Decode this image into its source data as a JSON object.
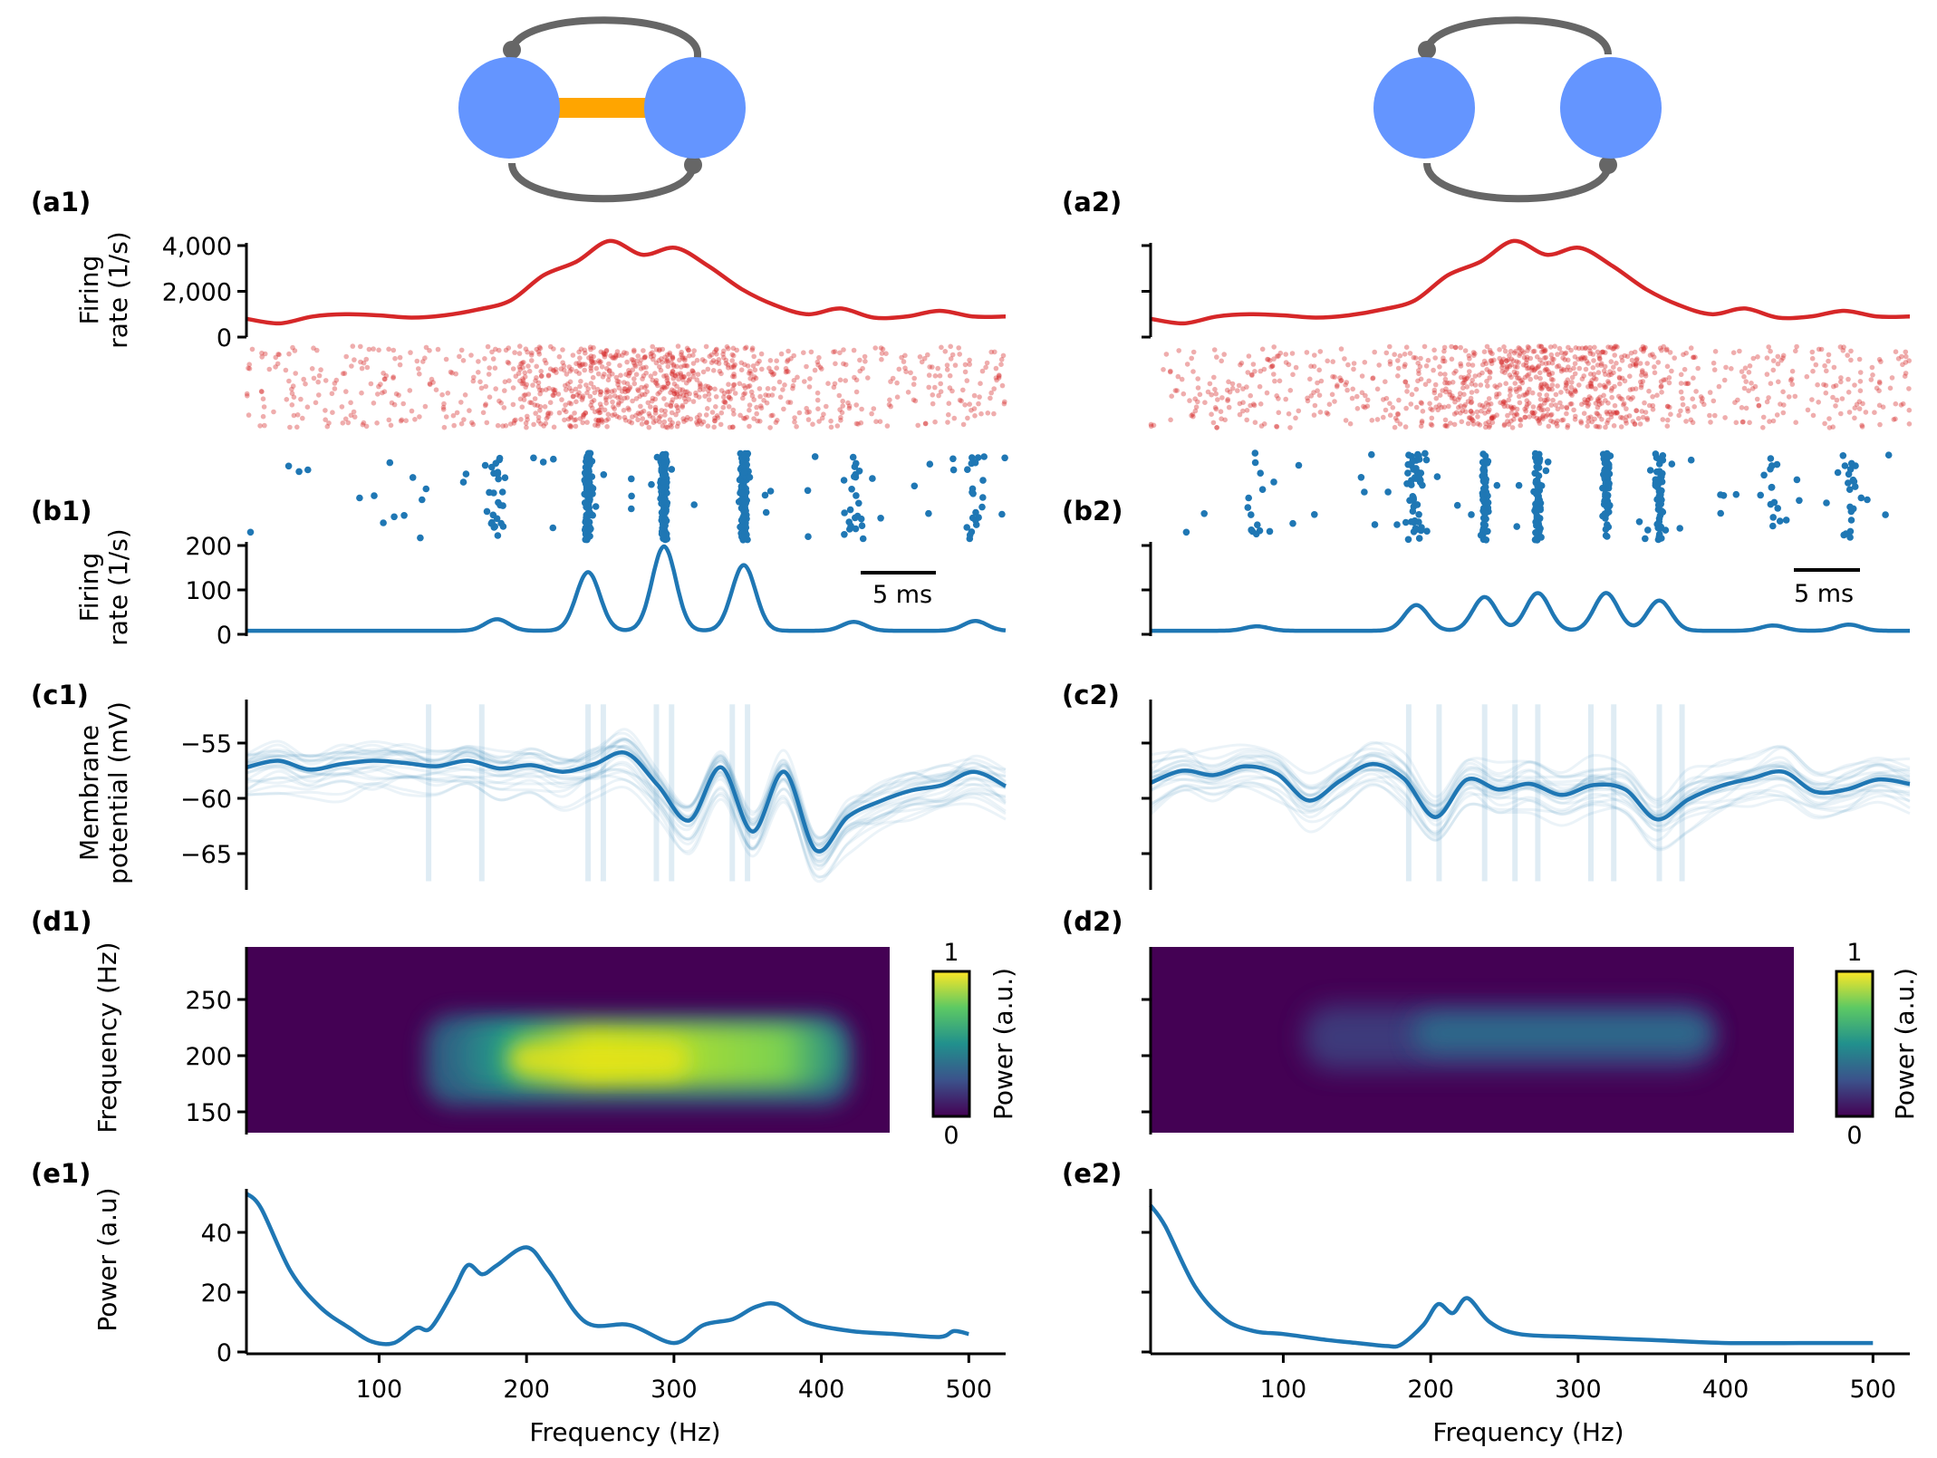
{
  "colors": {
    "excitatory": "#d62728",
    "inhibitory": "#1f77b4",
    "node": "#6495ff",
    "gap_junction": "#ffa500",
    "synapse": "#666666",
    "axis": "#000000"
  },
  "panel_labels": {
    "a1": "(a1)",
    "a2": "(a2)",
    "b1": "(b1)",
    "b2": "(b2)",
    "c1": "(c1)",
    "c2": "(c2)",
    "d1": "(d1)",
    "d2": "(d2)",
    "e1": "(e1)",
    "e2": "(e2)"
  },
  "axis_labels": {
    "a_line1": "Firing",
    "a_line2": "rate (1/s)",
    "b_line1": "Firing",
    "b_line2": "rate (1/s)",
    "c_line1": "Membrane",
    "c_line2": "potential (mV)",
    "d": "Frequency (Hz)",
    "e": "Power (a.u)",
    "x": "Frequency (Hz)",
    "colorbar": "Power (a.u.)"
  },
  "scale_bar": "5 ms",
  "colorbar_ticks": [
    "1",
    "0"
  ],
  "chart_data": [
    {
      "id": "a1",
      "type": "line",
      "series": [
        {
          "name": "",
          "values": [
            800,
            600,
            900,
            1000,
            950,
            850,
            950,
            1200,
            1600,
            2700,
            3300,
            4200,
            3600,
            3900,
            3100,
            2100,
            1400,
            1000,
            1250,
            850,
            900,
            1150,
            900,
            900
          ]
        }
      ],
      "ylim": [
        0,
        4500
      ],
      "yticks": [
        "0",
        "2,000",
        "4,000"
      ]
    },
    {
      "id": "a2",
      "type": "line",
      "series": [
        {
          "name": "",
          "values": [
            800,
            600,
            900,
            1000,
            950,
            850,
            950,
            1200,
            1600,
            2700,
            3300,
            4200,
            3600,
            3900,
            3100,
            2100,
            1400,
            1000,
            1250,
            850,
            900,
            1150,
            900,
            900
          ]
        }
      ],
      "ylim": [
        0,
        4500
      ],
      "yticks": []
    },
    {
      "id": "b1",
      "type": "line",
      "bumps": [
        {
          "t": 0.33,
          "a": 26
        },
        {
          "t": 0.45,
          "a": 132
        },
        {
          "t": 0.55,
          "a": 190
        },
        {
          "t": 0.655,
          "a": 148
        },
        {
          "t": 0.8,
          "a": 20
        },
        {
          "t": 0.96,
          "a": 22
        }
      ],
      "baseline": 8,
      "ylim": [
        0,
        210
      ],
      "yticks": [
        "0",
        "100",
        "200"
      ]
    },
    {
      "id": "b2",
      "type": "line",
      "bumps": [
        {
          "t": 0.14,
          "a": 10
        },
        {
          "t": 0.35,
          "a": 58
        },
        {
          "t": 0.44,
          "a": 76
        },
        {
          "t": 0.51,
          "a": 85
        },
        {
          "t": 0.6,
          "a": 85
        },
        {
          "t": 0.67,
          "a": 68
        },
        {
          "t": 0.82,
          "a": 12
        },
        {
          "t": 0.92,
          "a": 14
        }
      ],
      "baseline": 8,
      "ylim": [
        0,
        210
      ],
      "yticks": []
    },
    {
      "id": "c1",
      "type": "line",
      "series": [
        {
          "name": "",
          "values": [
            -57.2,
            -56.6,
            -57.4,
            -56.9,
            -56.6,
            -56.8,
            -57.1,
            -56.6,
            -57.3,
            -57.0,
            -57.6,
            -56.9,
            -55.9,
            -58.8,
            -62.0,
            -57.2,
            -63.0,
            -57.6,
            -64.7,
            -61.7,
            -60.3,
            -59.3,
            -58.8,
            -57.6,
            -58.9
          ]
        }
      ],
      "ylim": [
        -70,
        -50
      ],
      "yticks": [
        "−55",
        "−60",
        "−65"
      ]
    },
    {
      "id": "c2",
      "type": "line",
      "series": [
        {
          "name": "",
          "values": [
            -58.6,
            -57.5,
            -57.9,
            -57.1,
            -57.8,
            -60.2,
            -58.4,
            -56.9,
            -58.2,
            -61.7,
            -58.3,
            -59.2,
            -58.7,
            -59.7,
            -58.8,
            -59.2,
            -61.9,
            -60.1,
            -58.9,
            -58.2,
            -57.6,
            -59.4,
            -59.2,
            -58.3,
            -58.7
          ]
        }
      ],
      "ylim": [
        -70,
        -50
      ],
      "yticks": []
    },
    {
      "id": "d1",
      "type": "heatmap",
      "ylim": [
        120,
        295
      ],
      "yticks": [
        "250",
        "200",
        "150"
      ],
      "band_freq": 185,
      "peak_power": 1.0
    },
    {
      "id": "d2",
      "type": "heatmap",
      "ylim": [
        120,
        295
      ],
      "yticks": [],
      "band_freq": 218,
      "peak_power": 0.3
    },
    {
      "id": "e1",
      "type": "line",
      "x": [
        10,
        20,
        40,
        60,
        80,
        95,
        110,
        125,
        135,
        150,
        160,
        170,
        180,
        200,
        215,
        240,
        270,
        300,
        320,
        340,
        355,
        370,
        390,
        420,
        450,
        480,
        490,
        500
      ],
      "series": [
        {
          "name": "",
          "values": [
            53,
            48,
            27,
            15,
            8,
            3.5,
            3,
            8,
            8,
            20,
            29,
            26,
            29,
            35,
            27,
            10,
            9,
            3,
            9,
            11,
            15,
            16,
            10,
            7,
            6,
            5,
            7,
            6
          ]
        }
      ],
      "xlim": [
        10,
        525
      ],
      "ylim": [
        0,
        55
      ],
      "xticks": [
        100,
        200,
        300,
        400,
        500
      ],
      "yticks": [
        0,
        20,
        40
      ]
    },
    {
      "id": "e2",
      "type": "line",
      "x": [
        10,
        20,
        40,
        60,
        80,
        100,
        130,
        150,
        170,
        180,
        195,
        205,
        215,
        225,
        240,
        260,
        300,
        350,
        400,
        450,
        500
      ],
      "series": [
        {
          "name": "",
          "values": [
            49,
            42,
            22,
            11,
            7,
            6,
            4,
            3,
            2,
            2.5,
            9,
            16,
            13,
            18,
            10,
            6,
            5,
            4,
            3,
            3,
            3
          ]
        }
      ],
      "xlim": [
        10,
        525
      ],
      "ylim": [
        0,
        55
      ],
      "xticks": [
        100,
        200,
        300,
        400,
        500
      ],
      "yticks": [
        0,
        20,
        40
      ]
    }
  ]
}
